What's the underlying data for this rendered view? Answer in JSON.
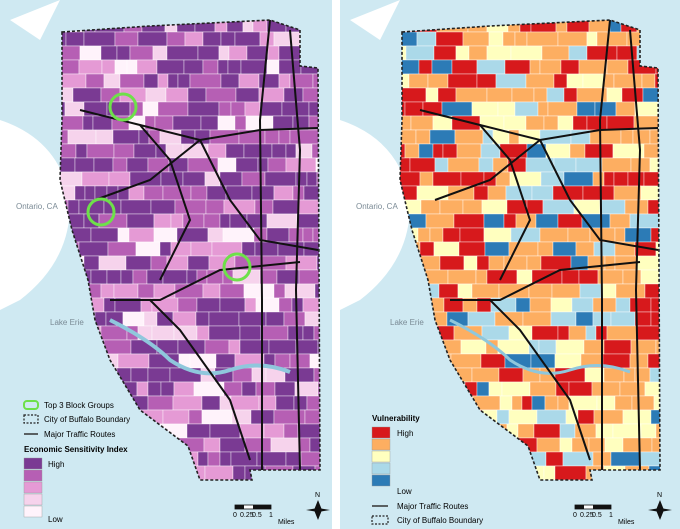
{
  "left_map": {
    "lake_labels": [
      "Ontario, CA",
      "Lake Erie"
    ],
    "legend": {
      "top3": "Top 3 Block Groups",
      "boundary": "City of Buffalo Boundary",
      "routes": "Major Traffic Routes",
      "index_title": "Economic Sensitivity Index",
      "high": "High",
      "low": "Low",
      "ramp_colors": [
        "#7a3a93",
        "#b65fb4",
        "#e59ad5",
        "#f6d3ec",
        "#fff3fb"
      ]
    },
    "scale": {
      "ticks": [
        "0",
        "0.25",
        "0.5",
        "1"
      ],
      "unit": "Miles"
    },
    "north": "N"
  },
  "right_map": {
    "lake_labels": [
      "Ontario, CA",
      "Lake Erie"
    ],
    "legend": {
      "title": "Vulnerability",
      "high": "High",
      "low": "Low",
      "routes": "Major Traffic Routes",
      "boundary": "City of Buffalo Boundary",
      "ramp_colors": [
        "#d7191c",
        "#fdae61",
        "#ffffbf",
        "#abd9e9",
        "#2c7bb6"
      ]
    },
    "scale": {
      "ticks": [
        "0",
        "0.25",
        "0.5",
        "1"
      ],
      "unit": "Miles"
    },
    "north": "N"
  },
  "colors": {
    "water": "#cfe9f2",
    "land": "#ffffff",
    "route": "#111111",
    "highlight": "#6ee04a"
  }
}
